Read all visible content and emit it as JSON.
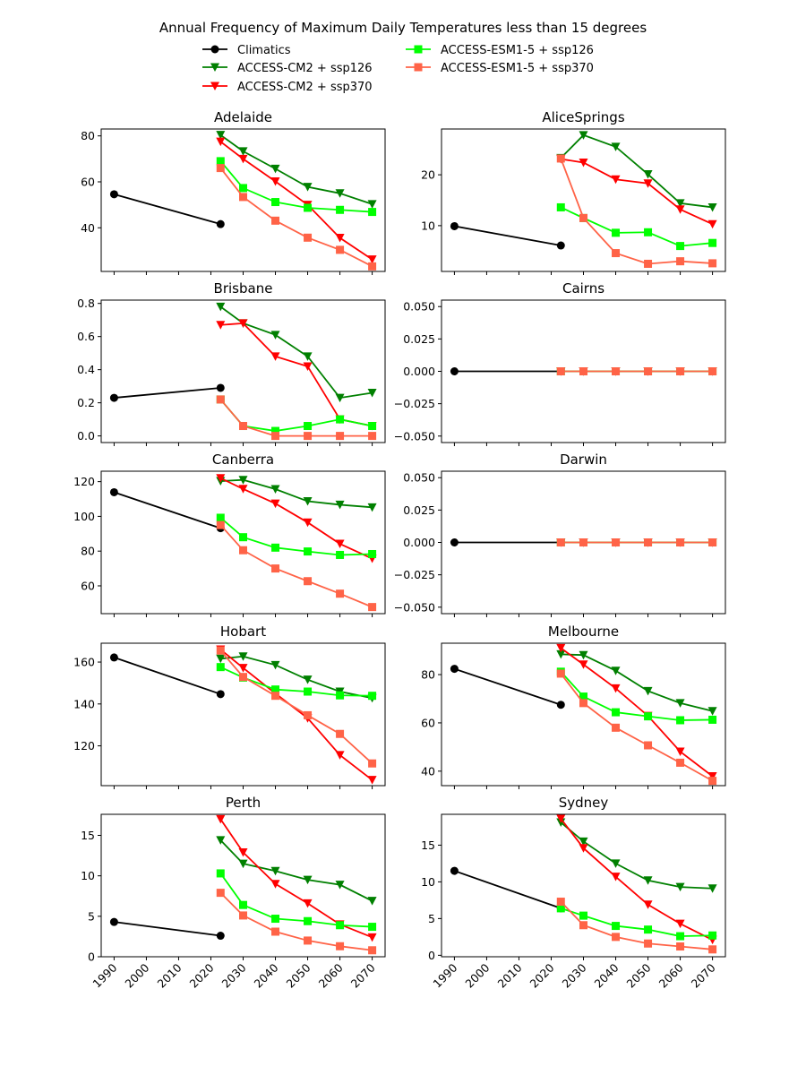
{
  "chart_data": {
    "type": "line",
    "title": "Annual Frequency of Maximum Daily Temperatures less than 15 degrees",
    "legend": {
      "placement": "top-center",
      "columns": 2,
      "entries": [
        {
          "key": "climatics",
          "label": "Climatics",
          "color": "#000000",
          "marker": "circle"
        },
        {
          "key": "cm2_126",
          "label": "ACCESS-CM2 + ssp126",
          "color": "#008000",
          "marker": "triangle-down"
        },
        {
          "key": "cm2_370",
          "label": "ACCESS-CM2 + ssp370",
          "color": "#ff0000",
          "marker": "triangle-down"
        },
        {
          "key": "esm_126",
          "label": "ACCESS-ESM1-5 + ssp126",
          "color": "#00ff00",
          "marker": "square"
        },
        {
          "key": "esm_370",
          "label": "ACCESS-ESM1-5 + ssp370",
          "color": "#ff6347",
          "marker": "square"
        }
      ]
    },
    "x_climatics": [
      1990,
      2023
    ],
    "x_projections": [
      2023,
      2030,
      2040,
      2050,
      2060,
      2070
    ],
    "xticks": [
      1990,
      2000,
      2010,
      2020,
      2030,
      2040,
      2050,
      2060,
      2070
    ],
    "xlim": [
      1986,
      2074
    ],
    "panels": [
      {
        "title": "Adelaide",
        "ylim": [
          21,
          83
        ],
        "yticks": [
          40,
          60,
          80
        ],
        "ytick_labels": [
          "40",
          "60",
          "80"
        ],
        "series": {
          "climatics": [
            54.6,
            41.6
          ],
          "cm2_126": [
            80.4,
            73.3,
            65.7,
            57.8,
            55.0,
            50.3
          ],
          "cm2_370": [
            77.5,
            70.0,
            60.2,
            50.0,
            35.6,
            26.2
          ],
          "esm_126": [
            69.0,
            57.3,
            51.2,
            48.7,
            47.8,
            46.9
          ],
          "esm_370": [
            66.0,
            53.4,
            43.1,
            35.7,
            30.4,
            23.2
          ]
        }
      },
      {
        "title": "AliceSprings",
        "ylim": [
          1,
          29
        ],
        "yticks": [
          10,
          20
        ],
        "ytick_labels": [
          "10",
          "20"
        ],
        "series": {
          "climatics": [
            9.9,
            6.1
          ],
          "cm2_126": [
            23.3,
            27.8,
            25.5,
            20.1,
            14.4,
            13.6
          ],
          "cm2_370": [
            23.1,
            22.4,
            19.1,
            18.3,
            13.2,
            10.3
          ],
          "esm_126": [
            13.6,
            11.5,
            8.6,
            8.7,
            6.0,
            6.6
          ],
          "esm_370": [
            23.2,
            11.5,
            4.6,
            2.5,
            3.0,
            2.6
          ]
        }
      },
      {
        "title": "Brisbane",
        "ylim": [
          -0.04,
          0.82
        ],
        "yticks": [
          0.0,
          0.2,
          0.4,
          0.6,
          0.8
        ],
        "ytick_labels": [
          "0.0",
          "0.2",
          "0.4",
          "0.6",
          "0.8"
        ],
        "series": {
          "climatics": [
            0.23,
            0.29
          ],
          "cm2_126": [
            0.78,
            0.68,
            0.61,
            0.48,
            0.23,
            0.26
          ],
          "cm2_370": [
            0.67,
            0.68,
            0.48,
            0.42,
            0.1,
            0.06
          ],
          "esm_126": [
            0.22,
            0.06,
            0.03,
            0.06,
            0.1,
            0.06
          ],
          "esm_370": [
            0.22,
            0.06,
            0.0,
            0.0,
            0.0,
            0.0
          ]
        }
      },
      {
        "title": "Cairns",
        "ylim": [
          -0.055,
          0.055
        ],
        "yticks": [
          -0.05,
          -0.025,
          0.0,
          0.025,
          0.05
        ],
        "ytick_labels": [
          "−0.050",
          "−0.025",
          "0.000",
          "0.025",
          "0.050"
        ],
        "series": {
          "climatics": [
            0,
            0
          ],
          "cm2_126": [
            0,
            0,
            0,
            0,
            0,
            0
          ],
          "cm2_370": [
            0,
            0,
            0,
            0,
            0,
            0
          ],
          "esm_126": [
            0,
            0,
            0,
            0,
            0,
            0
          ],
          "esm_370": [
            0,
            0,
            0,
            0,
            0,
            0
          ]
        }
      },
      {
        "title": "Canberra",
        "ylim": [
          44,
          126
        ],
        "yticks": [
          60,
          80,
          100,
          120
        ],
        "ytick_labels": [
          "60",
          "80",
          "100",
          "120"
        ],
        "series": {
          "climatics": [
            113.9,
            93.2
          ],
          "cm2_126": [
            120.3,
            121.0,
            115.7,
            108.7,
            106.7,
            105.2
          ],
          "cm2_370": [
            122.0,
            115.8,
            107.4,
            96.5,
            84.2,
            75.7
          ],
          "esm_126": [
            99.2,
            88.0,
            82.0,
            79.8,
            77.8,
            78.3
          ],
          "esm_370": [
            95.0,
            80.5,
            70.0,
            62.7,
            55.5,
            47.8
          ]
        }
      },
      {
        "title": "Darwin",
        "ylim": [
          -0.055,
          0.055
        ],
        "yticks": [
          -0.05,
          -0.025,
          0.0,
          0.025,
          0.05
        ],
        "ytick_labels": [
          "−0.050",
          "−0.025",
          "0.000",
          "0.025",
          "0.050"
        ],
        "series": {
          "climatics": [
            0,
            0
          ],
          "cm2_126": [
            0,
            0,
            0,
            0,
            0,
            0
          ],
          "cm2_370": [
            0,
            0,
            0,
            0,
            0,
            0
          ],
          "esm_126": [
            0,
            0,
            0,
            0,
            0,
            0
          ],
          "esm_370": [
            0,
            0,
            0,
            0,
            0,
            0
          ]
        }
      },
      {
        "title": "Hobart",
        "ylim": [
          101,
          169
        ],
        "yticks": [
          120,
          140,
          160
        ],
        "ytick_labels": [
          "120",
          "140",
          "160"
        ],
        "series": {
          "climatics": [
            162.2,
            144.7
          ],
          "cm2_126": [
            161.6,
            162.7,
            158.6,
            151.6,
            145.9,
            142.8
          ],
          "cm2_370": [
            166.0,
            157.2,
            145.0,
            133.2,
            115.6,
            103.7
          ],
          "esm_126": [
            157.6,
            152.6,
            146.9,
            145.9,
            144.1,
            143.9
          ],
          "esm_370": [
            165.5,
            152.9,
            143.9,
            134.6,
            125.7,
            111.6
          ]
        }
      },
      {
        "title": "Melbourne",
        "ylim": [
          34,
          93
        ],
        "yticks": [
          40,
          60,
          80
        ],
        "ytick_labels": [
          "40",
          "60",
          "80"
        ],
        "series": {
          "climatics": [
            82.4,
            67.5
          ],
          "cm2_126": [
            88.4,
            88.1,
            81.6,
            73.2,
            68.2,
            64.9
          ],
          "cm2_370": [
            91.0,
            84.2,
            74.3,
            62.9,
            48.1,
            37.9
          ],
          "esm_126": [
            81.2,
            70.9,
            64.4,
            62.7,
            61.1,
            61.3
          ],
          "esm_370": [
            80.4,
            68.2,
            58.0,
            50.7,
            43.5,
            36.0
          ]
        }
      },
      {
        "title": "Perth",
        "ylim": [
          0,
          17.6
        ],
        "yticks": [
          0,
          5,
          10,
          15
        ],
        "ytick_labels": [
          "0",
          "5",
          "10",
          "15"
        ],
        "series": {
          "climatics": [
            4.3,
            2.6
          ],
          "cm2_126": [
            14.4,
            11.5,
            10.6,
            9.5,
            8.9,
            6.9
          ],
          "cm2_370": [
            17.0,
            12.9,
            9.0,
            6.6,
            4.0,
            2.4
          ],
          "esm_126": [
            10.3,
            6.4,
            4.7,
            4.4,
            3.9,
            3.7
          ],
          "esm_370": [
            7.9,
            5.1,
            3.1,
            2.0,
            1.3,
            0.8
          ]
        }
      },
      {
        "title": "Sydney",
        "ylim": [
          -0.2,
          19.2
        ],
        "yticks": [
          0,
          5,
          10,
          15
        ],
        "ytick_labels": [
          "0",
          "5",
          "10",
          "15"
        ],
        "series": {
          "climatics": [
            11.5,
            6.4
          ],
          "cm2_126": [
            18.1,
            15.5,
            12.5,
            10.2,
            9.3,
            9.1
          ],
          "cm2_370": [
            18.6,
            14.6,
            10.7,
            6.9,
            4.3,
            2.1
          ],
          "esm_126": [
            6.4,
            5.4,
            4.0,
            3.5,
            2.6,
            2.7
          ],
          "esm_370": [
            7.3,
            4.1,
            2.5,
            1.6,
            1.2,
            0.8
          ]
        }
      }
    ]
  }
}
